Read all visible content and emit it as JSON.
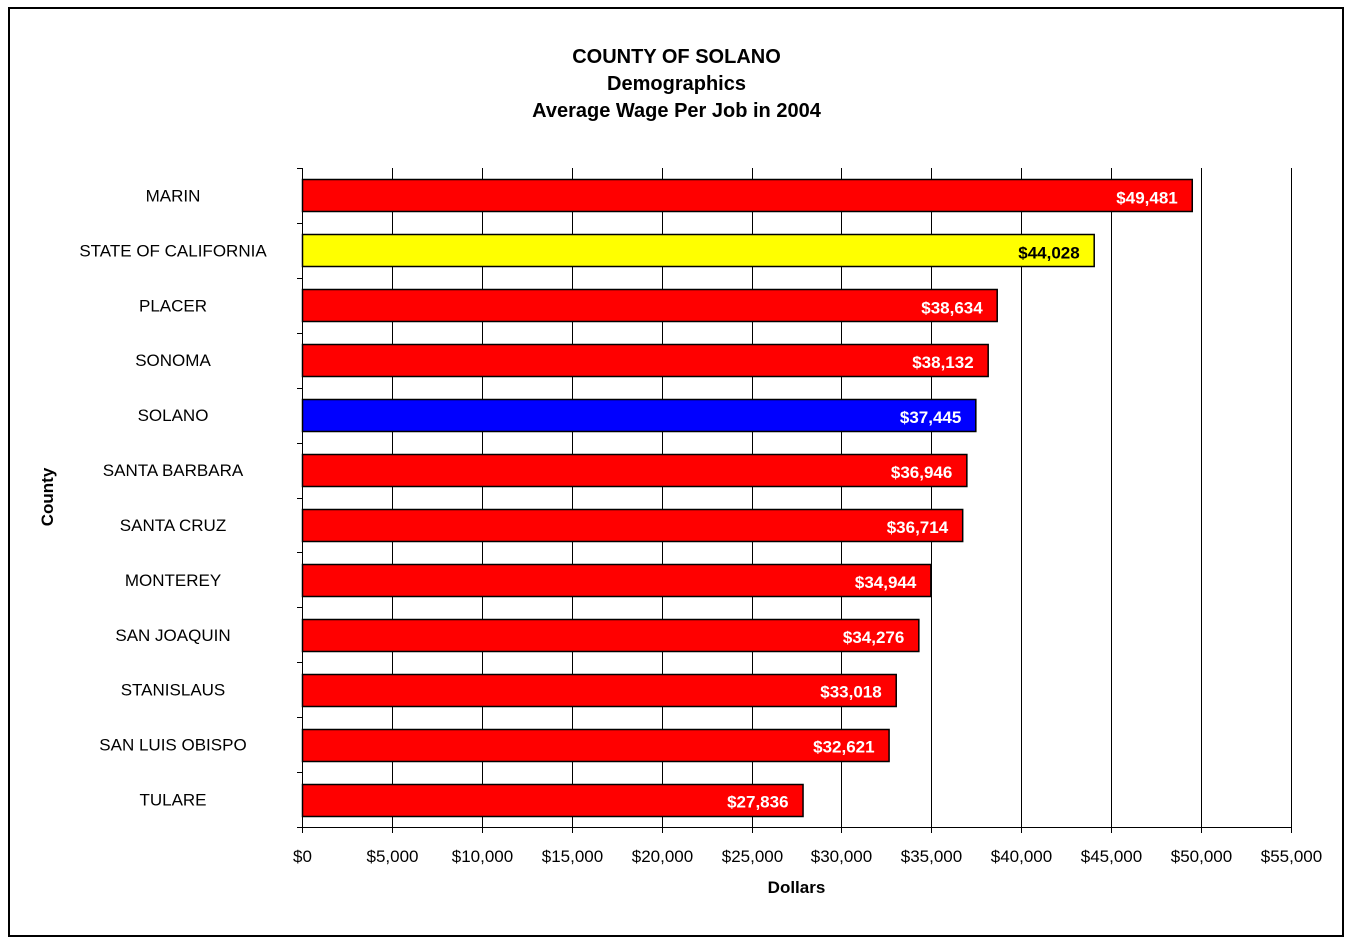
{
  "chart_data": {
    "type": "bar",
    "orientation": "horizontal",
    "title": [
      "COUNTY OF SOLANO",
      "Demographics",
      "Average Wage Per Job in 2004"
    ],
    "xlabel": "Dollars",
    "ylabel": "County",
    "xlim": [
      0,
      55000
    ],
    "xticks": [
      0,
      5000,
      10000,
      15000,
      20000,
      25000,
      30000,
      35000,
      40000,
      45000,
      50000,
      55000
    ],
    "xtick_labels": [
      "$0",
      "$5,000",
      "$10,000",
      "$15,000",
      "$20,000",
      "$25,000",
      "$30,000",
      "$35,000",
      "$40,000",
      "$45,000",
      "$50,000",
      "$55,000"
    ],
    "grid": "vertical",
    "categories": [
      "MARIN",
      "STATE OF CALIFORNIA",
      "PLACER",
      "SONOMA",
      "SOLANO",
      "SANTA BARBARA",
      "SANTA CRUZ",
      "MONTEREY",
      "SAN JOAQUIN",
      "STANISLAUS",
      "SAN LUIS OBISPO",
      "TULARE"
    ],
    "values": [
      49481,
      44028,
      38634,
      38132,
      37445,
      36946,
      36714,
      34944,
      34276,
      33018,
      32621,
      27836
    ],
    "data_labels": [
      "$49,481",
      "$44,028",
      "$38,634",
      "$38,132",
      "$37,445",
      "$36,946",
      "$36,714",
      "$34,944",
      "$34,276",
      "$33,018",
      "$32,621",
      "$27,836"
    ],
    "colors": [
      "#ff0000",
      "#ffff00",
      "#ff0000",
      "#ff0000",
      "#0000ff",
      "#ff0000",
      "#ff0000",
      "#ff0000",
      "#ff0000",
      "#ff0000",
      "#ff0000",
      "#ff0000"
    ],
    "label_colors": [
      "#ffffff",
      "#000000",
      "#ffffff",
      "#ffffff",
      "#ffffff",
      "#ffffff",
      "#ffffff",
      "#ffffff",
      "#ffffff",
      "#ffffff",
      "#ffffff",
      "#ffffff"
    ]
  }
}
